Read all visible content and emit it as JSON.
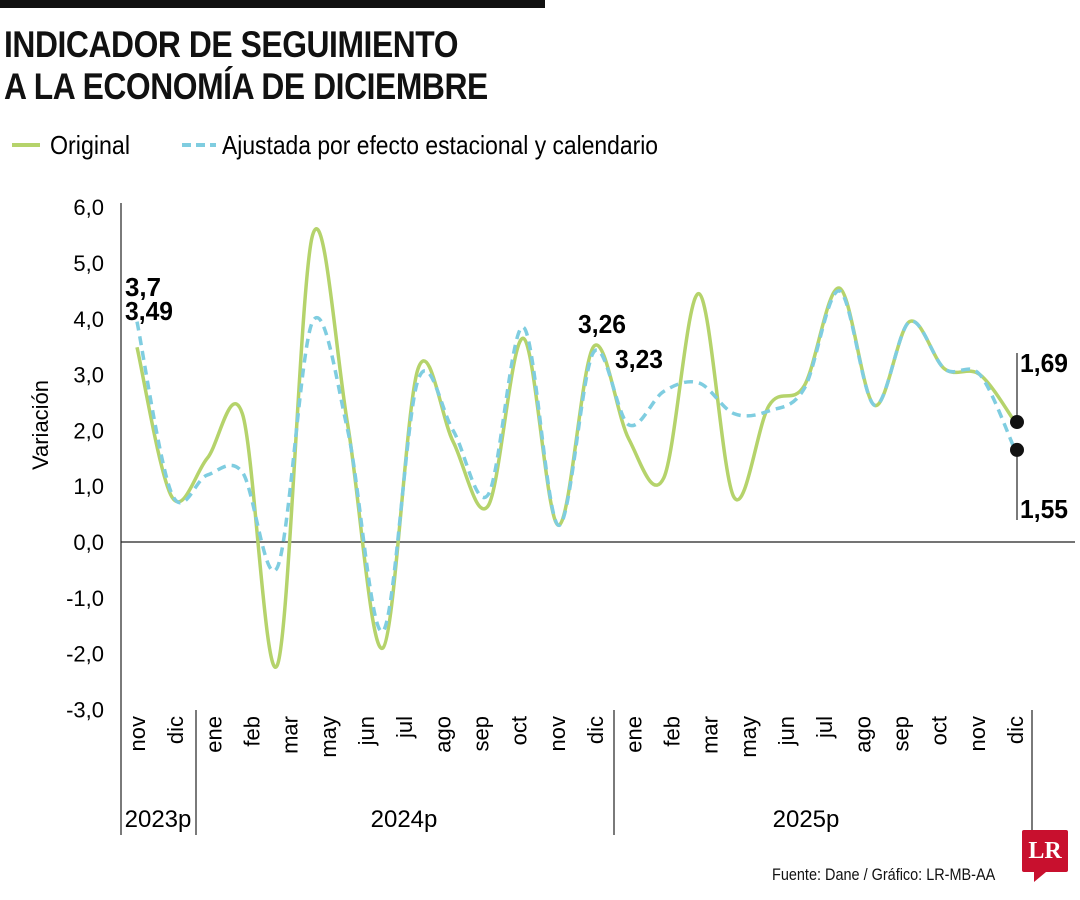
{
  "title_lines": [
    "INDICADOR DE SEGUIMIENTO",
    "A LA ECONOMÍA DE DICIEMBRE"
  ],
  "source": "Fuente: Dane / Gráfico: LR-MB-AA",
  "logo": "LR",
  "chart_data": {
    "type": "line",
    "ylabel": "Variación",
    "ylim": [
      -3,
      6
    ],
    "yticks": [
      "6,0",
      "5,0",
      "4,0",
      "3,0",
      "2,0",
      "1,0",
      "0,0",
      "-1,0",
      "-2,0",
      "-3,0"
    ],
    "ytick_values": [
      6,
      5,
      4,
      3,
      2,
      1,
      0,
      -1,
      -2,
      -3
    ],
    "x_tick_labels": [
      "nov",
      "dic",
      "ene",
      "feb",
      "mar",
      "may",
      "jun",
      "jul",
      "ago",
      "sep",
      "oct",
      "nov",
      "dic",
      "ene",
      "feb",
      "mar",
      "may",
      "jun",
      "jul",
      "ago",
      "sep",
      "oct",
      "nov",
      "dic"
    ],
    "year_labels": [
      "2023p",
      "2024p",
      "2025p"
    ],
    "x": [
      "2023-11",
      "2023-12",
      "2024-01",
      "2024-02",
      "2024-03",
      "2024-04",
      "2024-05",
      "2024-06",
      "2024-07",
      "2024-08",
      "2024-09",
      "2024-10",
      "2024-11",
      "2024-12",
      "2025-01",
      "2025-02",
      "2025-03",
      "2025-04",
      "2025-05",
      "2025-06",
      "2025-07",
      "2025-08",
      "2025-09",
      "2025-10",
      "2025-11",
      "2025-12"
    ],
    "series": [
      {
        "name": "Original",
        "color": "#b5d36b",
        "style": "solid",
        "values": [
          3.49,
          0.8,
          1.5,
          2.3,
          -2.2,
          5.5,
          2.1,
          -1.9,
          3.1,
          1.8,
          0.65,
          3.65,
          0.3,
          3.5,
          1.85,
          1.15,
          4.45,
          0.8,
          2.45,
          2.8,
          4.55,
          2.45,
          3.95,
          3.1,
          3.0,
          2.15
        ]
      },
      {
        "name": "Ajustada por efecto estacional y calendario",
        "color": "#7fcde0",
        "style": "dashed",
        "values": [
          3.95,
          0.85,
          1.2,
          1.25,
          -0.45,
          3.95,
          2.0,
          -1.6,
          2.9,
          2.0,
          0.85,
          3.85,
          0.3,
          3.4,
          2.1,
          2.7,
          2.85,
          2.3,
          2.35,
          2.75,
          4.5,
          2.45,
          3.95,
          3.1,
          3.0,
          1.65
        ]
      }
    ],
    "annotations": [
      "3,7",
      "3,49",
      "3,26",
      "3,23",
      "1,69",
      "1,55"
    ],
    "grid": false,
    "legend_position": "top-left"
  }
}
